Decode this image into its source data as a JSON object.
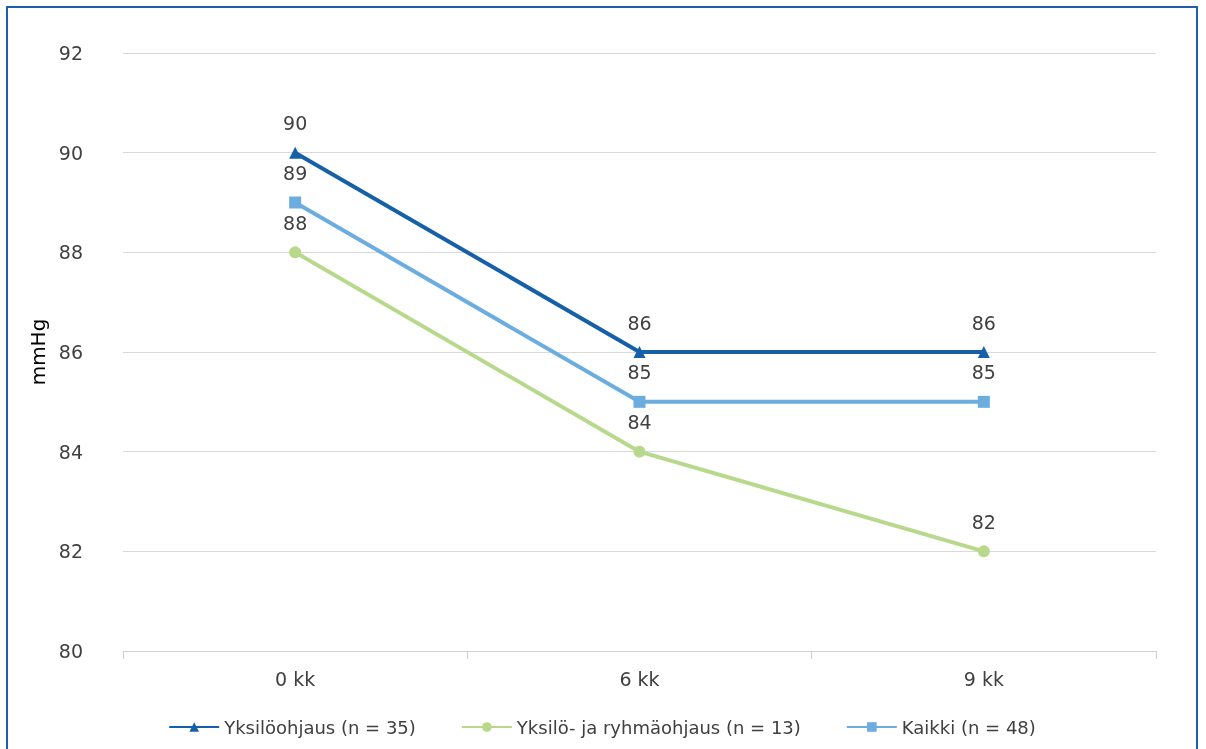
{
  "chart_data": {
    "type": "line",
    "ylabel": "mmHg",
    "categories": [
      "0 kk",
      "6 kk",
      "9 kk"
    ],
    "series": [
      {
        "name": "Yksilöohjaus (n = 35)",
        "color": "#1560a8",
        "marker": "triangle",
        "values": [
          90,
          86,
          86
        ]
      },
      {
        "name": "Yksilö- ja ryhmäohjaus (n = 13)",
        "color": "#b8d98c",
        "marker": "circle",
        "values": [
          88,
          84,
          82
        ]
      },
      {
        "name": "Kaikki (n = 48)",
        "color": "#6cade0",
        "marker": "square",
        "values": [
          89,
          85,
          85
        ]
      }
    ],
    "ylim": [
      80,
      92
    ],
    "yticks": [
      80,
      82,
      84,
      86,
      88,
      90,
      92
    ],
    "grid": "y",
    "legend": "bottom",
    "data_labels": true
  }
}
